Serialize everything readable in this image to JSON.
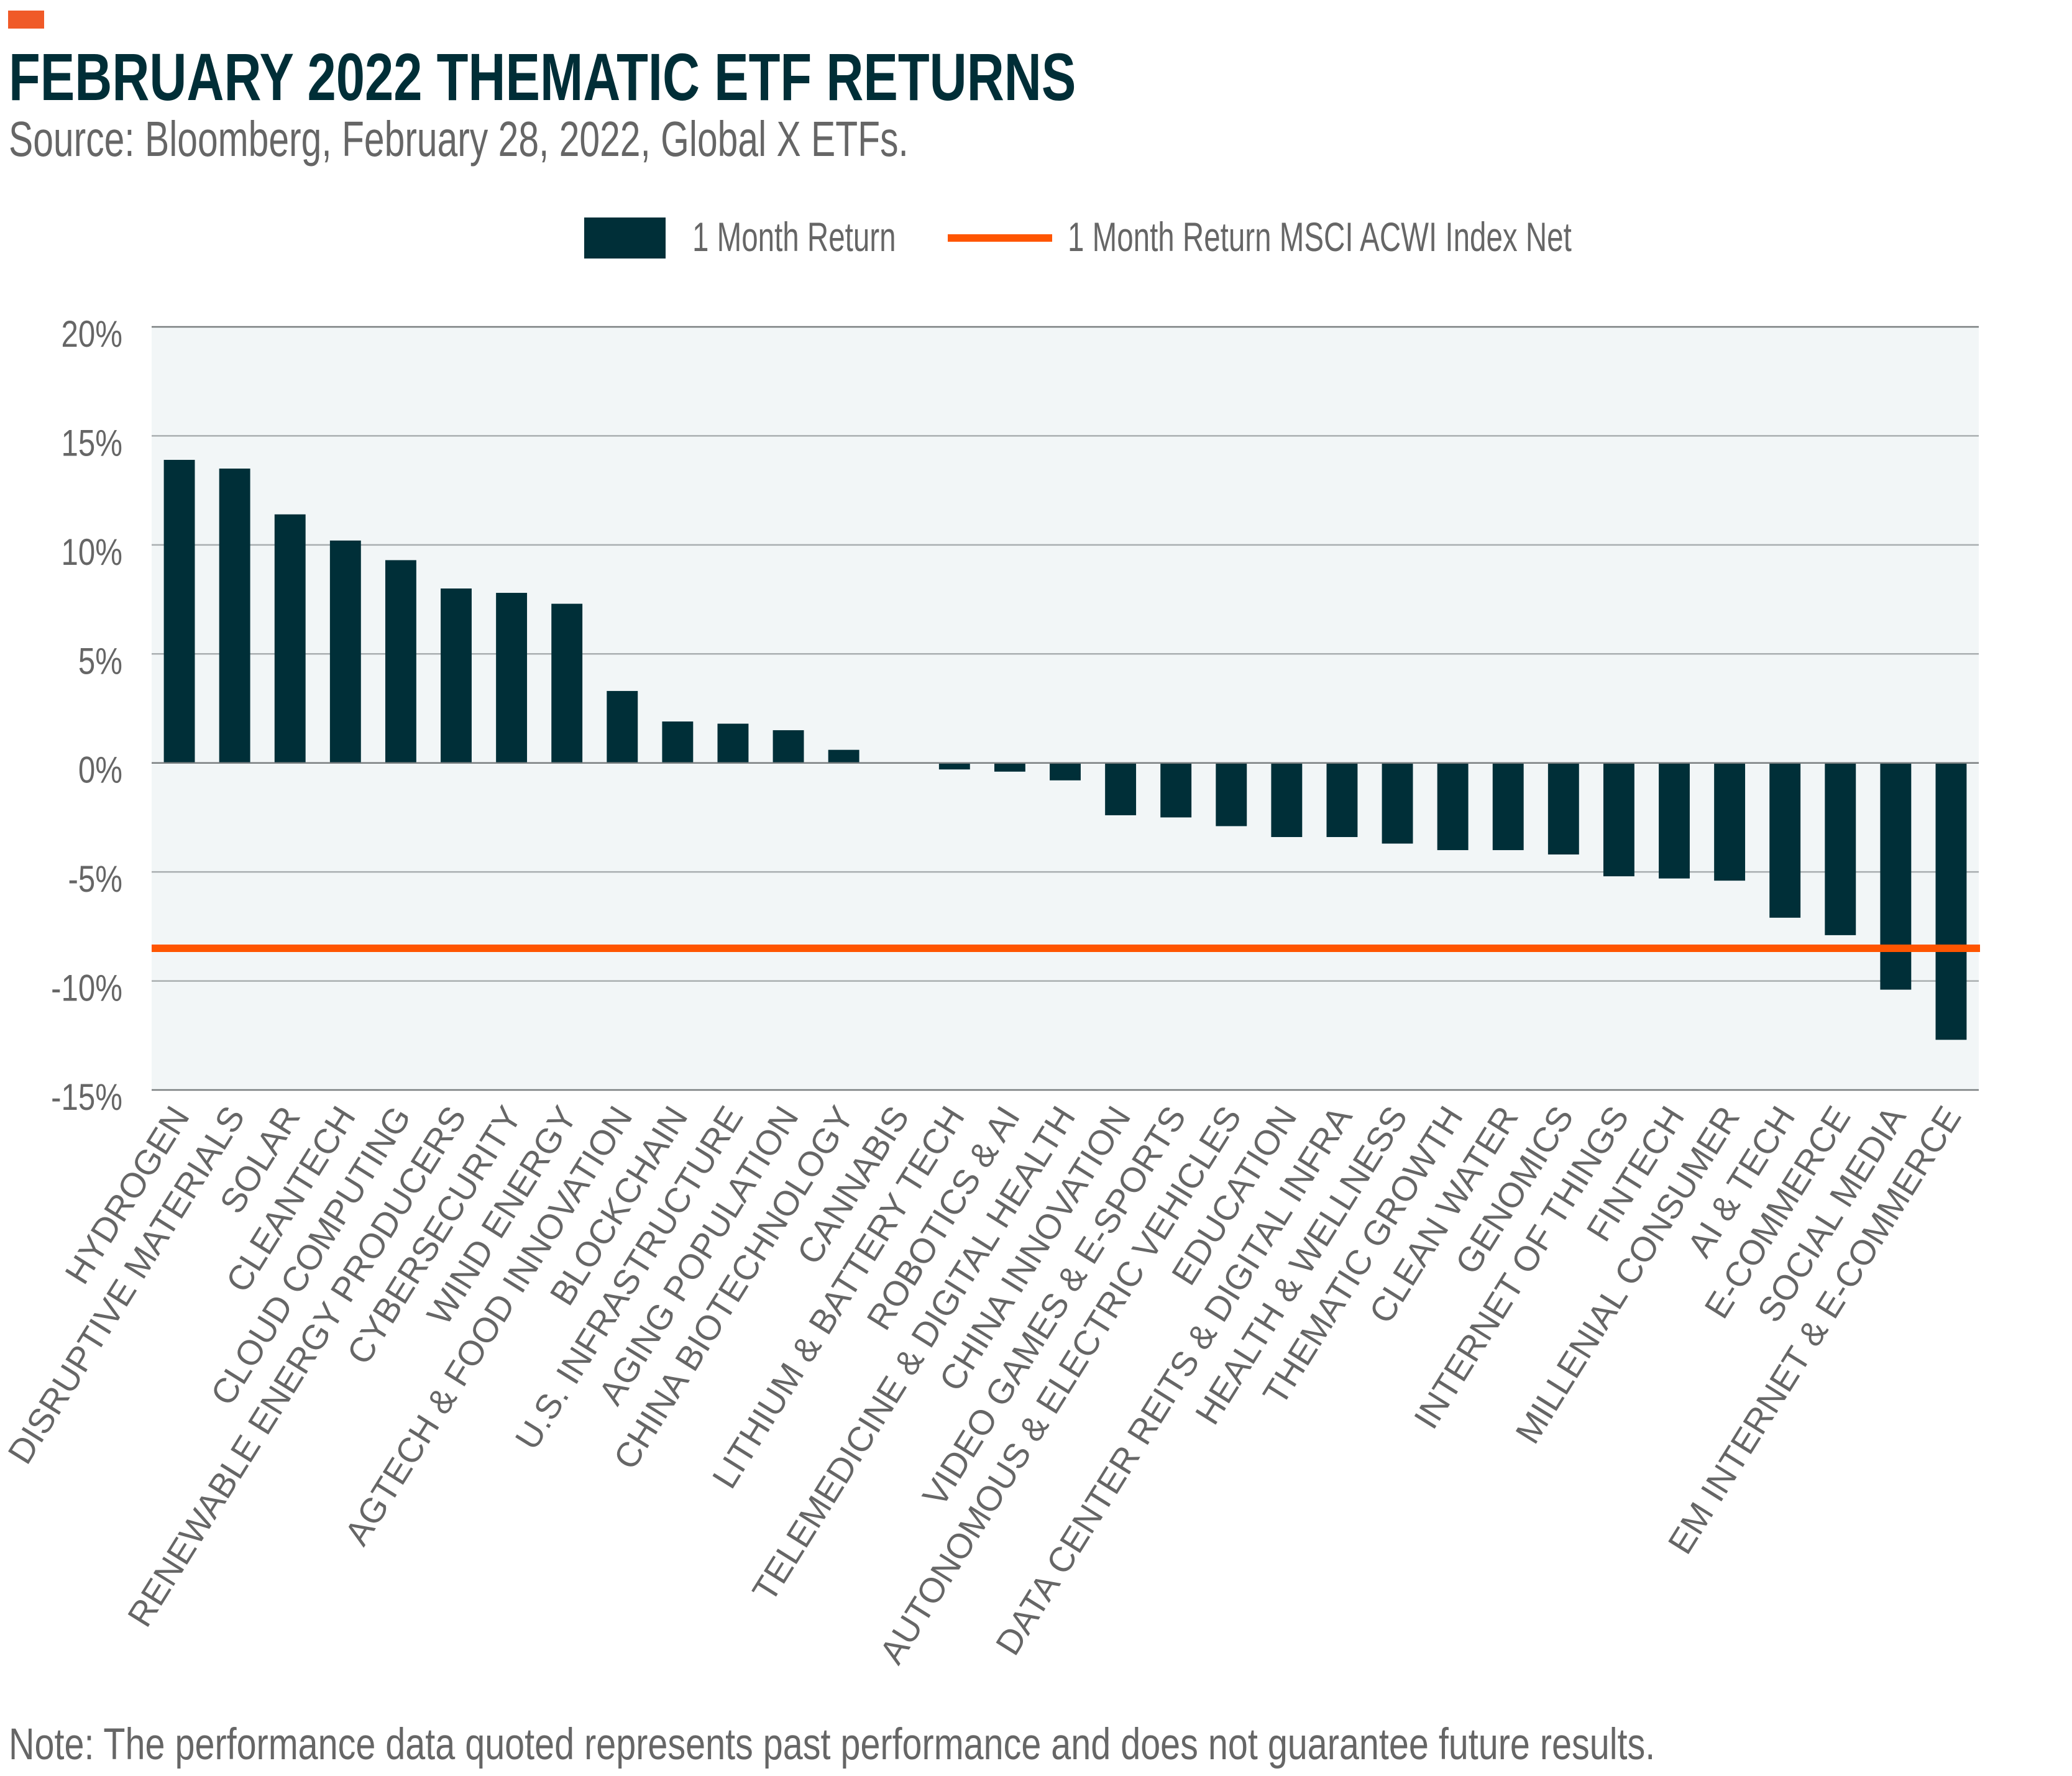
{
  "header": {
    "title": "FEBRUARY 2022 THEMATIC ETF RETURNS",
    "subtitle": "Source: Bloomberg, February 28, 2022, Global X ETFs."
  },
  "footer": {
    "note": "Note: The performance data quoted represents past performance and does not guarantee future results."
  },
  "colors": {
    "accent": "#F05A28",
    "bar": "#002F38",
    "index_line": "#FF5500",
    "plot_background": "#F2F6F7",
    "gridline": "#A9AEB0",
    "axis_text": "#666666",
    "title": "#002E37"
  },
  "chart_data": {
    "type": "bar",
    "title": "FEBRUARY 2022 THEMATIC ETF RETURNS",
    "subtitle": "Source: Bloomberg, February 28, 2022, Global X ETFs.",
    "xlabel": "",
    "ylabel": "",
    "ylim": [
      -15,
      20
    ],
    "yticks": [
      20,
      15,
      10,
      5,
      0,
      -5,
      -10,
      -15
    ],
    "ytick_labels": [
      "20%",
      "15%",
      "10%",
      "5%",
      "0%",
      "-5%",
      "-10%",
      "-15%"
    ],
    "grid": true,
    "legend_position": "top-center",
    "categories": [
      "HYDROGEN",
      "DISRUPTIVE MATERIALS",
      "SOLAR",
      "CLEANTECH",
      "CLOUD COMPUTING",
      "RENEWABLE ENERGY PRODUCERS",
      "CYBERSECURITY",
      "WIND ENERGY",
      "AGTECH & FOOD INNOVATION",
      "BLOCKCHAIN",
      "U.S. INFRASTRUCTURE",
      "AGING POPULATION",
      "CHINA BIOTECHNOLOGY",
      "CANNABIS",
      "LITHIUM & BATTERY TECH",
      "ROBOTICS & AI",
      "TELEMEDICINE & DIGITAL HEALTH",
      "CHINA INNOVATION",
      "VIDEO GAMES & E-SPORTS",
      "AUTONOMOUS & ELECTRIC VEHICLES",
      "EDUCATION",
      "DATA CENTER REITS & DIGITAL INFRA",
      "HEALTH & WELLNESS",
      "THEMATIC GROWTH",
      "CLEAN WATER",
      "GENOMICS",
      "INTERNET OF THINGS",
      "FINTECH",
      "MILLENIAL CONSUMER",
      "AI & TECH",
      "E-COMMERCE",
      "SOCIAL MEDIA",
      "EM INTERNET & E-COMMERCE"
    ],
    "series": [
      {
        "name": "1 Month Return",
        "type": "bar",
        "values": [
          13.9,
          13.5,
          11.4,
          10.2,
          9.3,
          8.0,
          7.8,
          7.3,
          3.3,
          1.9,
          1.8,
          1.5,
          0.6,
          0.0,
          -0.3,
          -0.4,
          -0.8,
          -2.4,
          -2.5,
          -2.9,
          -3.4,
          -3.4,
          -3.7,
          -4.0,
          -4.0,
          -4.2,
          -5.2,
          -5.3,
          -5.4,
          -7.1,
          -7.9,
          -10.4,
          -12.7
        ]
      },
      {
        "name": "1 Month Return MSCI ACWI Index Net",
        "type": "hline",
        "value": -8.5
      }
    ],
    "legend": [
      {
        "label": "1 Month Return",
        "marker": "bar"
      },
      {
        "label": "1 Month Return MSCI ACWI Index Net",
        "marker": "line"
      }
    ]
  }
}
